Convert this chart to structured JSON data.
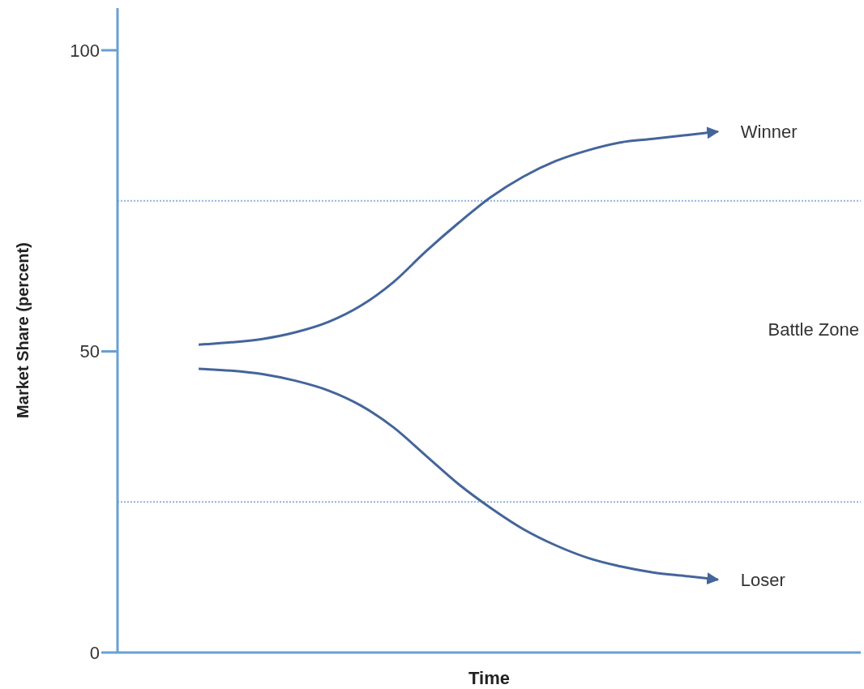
{
  "chart_data": {
    "type": "line",
    "xlabel": "Time",
    "ylabel": "Market Share (percent)",
    "categories": [
      null,
      null,
      null,
      null,
      null,
      null,
      null,
      null,
      null,
      null,
      null,
      null,
      null,
      null,
      null,
      null,
      null,
      null,
      null,
      null,
      null,
      null,
      null
    ],
    "series": [
      {
        "name": "Winner",
        "color": "#44659a",
        "values": [
          null,
          null,
          51.1,
          51.5,
          52.1,
          53.2,
          54.9,
          57.6,
          61.5,
          66.6,
          71.3,
          75.6,
          79.0,
          81.6,
          83.4,
          84.7,
          85.3,
          85.9,
          86.5,
          null,
          null,
          null,
          null
        ]
      },
      {
        "name": "Loser",
        "color": "#44659a",
        "values": [
          null,
          null,
          47.1,
          46.8,
          46.2,
          45.1,
          43.5,
          41.0,
          37.4,
          32.7,
          28.0,
          24.0,
          20.5,
          17.8,
          15.7,
          14.3,
          13.3,
          12.7,
          12.1,
          null,
          null,
          null,
          null
        ]
      }
    ],
    "ylim": [
      0,
      107
    ],
    "yticks": [
      0,
      50,
      100
    ],
    "ref_lines": [
      {
        "axis": "y",
        "value": 75,
        "color": "#8fb2dc",
        "line_style": "dotted"
      },
      {
        "axis": "y",
        "value": 25,
        "color": "#8fb2dc",
        "line_style": "dotted"
      }
    ],
    "annotations": [
      "Battle Zone"
    ],
    "tick_labels": "y",
    "marker": "none",
    "line_style": "solid"
  }
}
